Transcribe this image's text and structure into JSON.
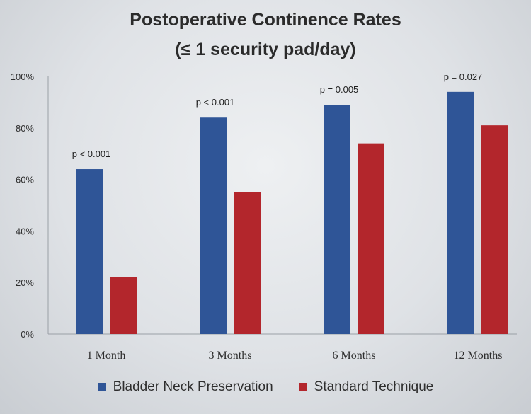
{
  "chart_data": {
    "type": "bar",
    "title": "Postoperative Continence Rates",
    "subtitle": "(≤ 1 security pad/day)",
    "categories": [
      "1 Month",
      "3 Months",
      "6 Months",
      "12 Months"
    ],
    "series": [
      {
        "name": "Bladder Neck Preservation",
        "color": "#2f5597",
        "values": [
          64,
          84,
          89,
          94
        ]
      },
      {
        "name": "Standard Technique",
        "color": "#b3262c",
        "values": [
          22,
          55,
          74,
          81
        ]
      }
    ],
    "annotations": [
      "p < 0.001",
      "p < 0.001",
      "p = 0.005",
      "p = 0.027"
    ],
    "yticks": [
      "0%",
      "20%",
      "40%",
      "60%",
      "80%",
      "100%"
    ],
    "ylim": [
      0,
      100
    ],
    "grid": false,
    "legend_position": "bottom"
  }
}
